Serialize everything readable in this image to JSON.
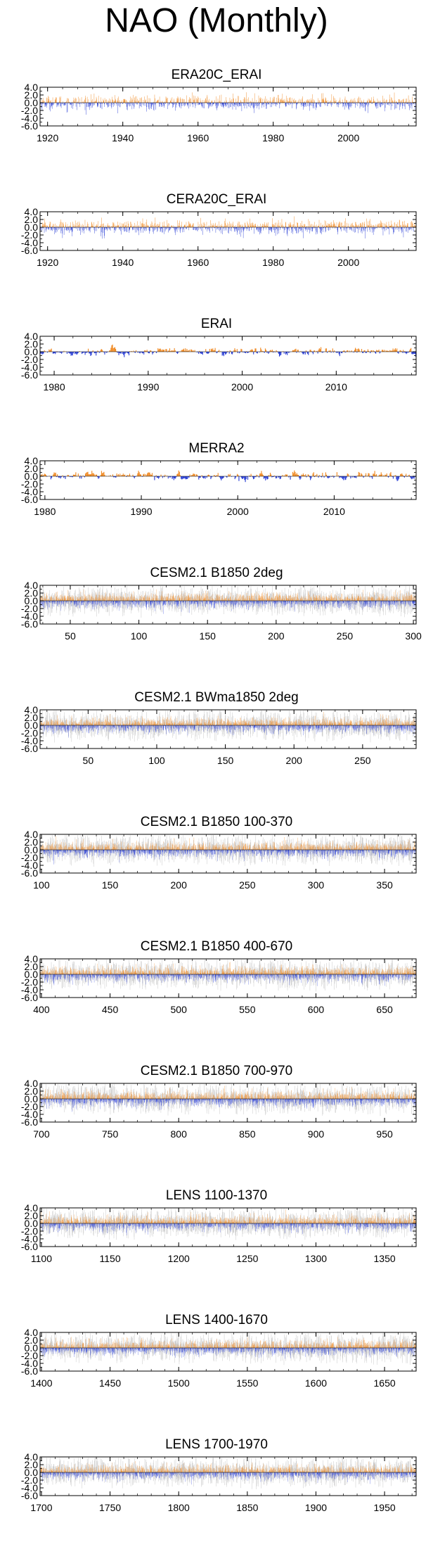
{
  "title": "NAO (Monthly)",
  "colors": {
    "positive": "#f08a24",
    "negative": "#2a3fd6",
    "ensemble_spread": "#c8c8c8",
    "frame": "#000000"
  },
  "chart_data": [
    {
      "type": "bar",
      "title": "ERA20C_ERAI",
      "xlim": [
        1918,
        2018
      ],
      "ylim": [
        -6,
        4
      ],
      "yticks": [
        "4.0",
        "2.0",
        "0.0",
        "-2.0",
        "-4.0",
        "-6.0"
      ],
      "xticks": [
        1920,
        1940,
        1960,
        1980,
        2000
      ],
      "spread": false,
      "smoothness": 0.05
    },
    {
      "type": "bar",
      "title": "CERA20C_ERAI",
      "xlim": [
        1918,
        2018
      ],
      "ylim": [
        -6,
        4
      ],
      "yticks": [
        "4.0",
        "2.0",
        "0.0",
        "-2.0",
        "-4.0",
        "-6.0"
      ],
      "xticks": [
        1920,
        1940,
        1960,
        1980,
        2000
      ],
      "spread": false,
      "smoothness": 0.05
    },
    {
      "type": "bar",
      "title": "ERAI",
      "xlim": [
        1978.5,
        2018.5
      ],
      "ylim": [
        -6,
        4
      ],
      "yticks": [
        "4.0",
        "2.0",
        "0.0",
        "-2.0",
        "-4.0",
        "-6.0"
      ],
      "xticks": [
        1980,
        1990,
        2000,
        2010
      ],
      "spread": false,
      "smoothness": 0.55
    },
    {
      "type": "bar",
      "title": "MERRA2",
      "xlim": [
        1979.5,
        2018.5
      ],
      "ylim": [
        -6,
        4
      ],
      "yticks": [
        "4.0",
        "2.0",
        "0.0",
        "-2.0",
        "-4.0",
        "-6.0"
      ],
      "xticks": [
        1980,
        1990,
        2000,
        2010
      ],
      "spread": false,
      "smoothness": 0.55
    },
    {
      "type": "bar",
      "title": "CESM2.1 B1850 2deg",
      "xlim": [
        28,
        302
      ],
      "ylim": [
        -6,
        4
      ],
      "yticks": [
        "4.0",
        "2.0",
        "0.0",
        "-2.0",
        "-4.0",
        "-6.0"
      ],
      "xticks": [
        50,
        100,
        150,
        200,
        250,
        300
      ],
      "spread": true,
      "smoothness": 0.05
    },
    {
      "type": "bar",
      "title": "CESM2.1 BWma1850 2deg",
      "xlim": [
        15,
        289
      ],
      "ylim": [
        -6,
        4
      ],
      "yticks": [
        "4.0",
        "2.0",
        "0.0",
        "-2.0",
        "-4.0",
        "-6.0"
      ],
      "xticks": [
        50,
        100,
        150,
        200,
        250
      ],
      "spread": true,
      "smoothness": 0.05
    },
    {
      "type": "bar",
      "title": "CESM2.1 B1850 100-370",
      "xlim": [
        99,
        373
      ],
      "ylim": [
        -6,
        4
      ],
      "yticks": [
        "4.0",
        "2.0",
        "0.0",
        "-2.0",
        "-4.0",
        "-6.0"
      ],
      "xticks": [
        100,
        150,
        200,
        250,
        300,
        350
      ],
      "spread": true,
      "smoothness": 0.05
    },
    {
      "type": "bar",
      "title": "CESM2.1 B1850 400-670",
      "xlim": [
        399,
        673
      ],
      "ylim": [
        -6,
        4
      ],
      "yticks": [
        "4.0",
        "2.0",
        "0.0",
        "-2.0",
        "-4.0",
        "-6.0"
      ],
      "xticks": [
        400,
        450,
        500,
        550,
        600,
        650
      ],
      "spread": true,
      "smoothness": 0.05
    },
    {
      "type": "bar",
      "title": "CESM2.1 B1850 700-970",
      "xlim": [
        699,
        973
      ],
      "ylim": [
        -6,
        4
      ],
      "yticks": [
        "4.0",
        "2.0",
        "0.0",
        "-2.0",
        "-4.0",
        "-6.0"
      ],
      "xticks": [
        700,
        750,
        800,
        850,
        900,
        950
      ],
      "spread": true,
      "smoothness": 0.05
    },
    {
      "type": "bar",
      "title": "LENS 1100-1370",
      "xlim": [
        1099,
        1373
      ],
      "ylim": [
        -6,
        4
      ],
      "yticks": [
        "4.0",
        "2.0",
        "0.0",
        "-2.0",
        "-4.0",
        "-6.0"
      ],
      "xticks": [
        1100,
        1150,
        1200,
        1250,
        1300,
        1350
      ],
      "spread": true,
      "smoothness": 0.05
    },
    {
      "type": "bar",
      "title": "LENS 1400-1670",
      "xlim": [
        1399,
        1673
      ],
      "ylim": [
        -6,
        4
      ],
      "yticks": [
        "4.0",
        "2.0",
        "0.0",
        "-2.0",
        "-4.0",
        "-6.0"
      ],
      "xticks": [
        1400,
        1450,
        1500,
        1550,
        1600,
        1650
      ],
      "spread": true,
      "smoothness": 0.05
    },
    {
      "type": "bar",
      "title": "LENS 1700-1970",
      "xlim": [
        1699,
        1973
      ],
      "ylim": [
        -6,
        4
      ],
      "yticks": [
        "4.0",
        "2.0",
        "0.0",
        "-2.0",
        "-4.0",
        "-6.0"
      ],
      "xticks": [
        1700,
        1750,
        1800,
        1850,
        1900,
        1950
      ],
      "spread": true,
      "smoothness": 0.05
    }
  ]
}
